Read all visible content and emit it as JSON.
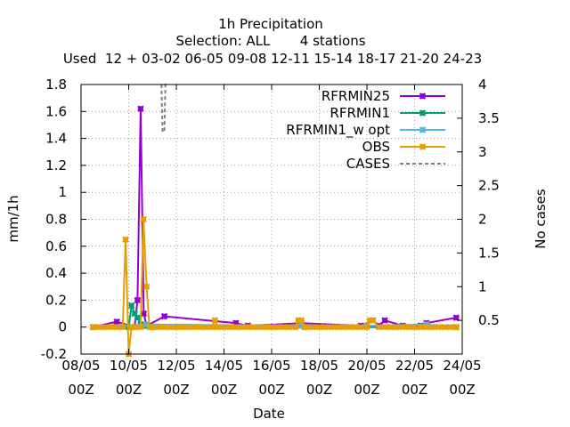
{
  "chart_data": {
    "type": "line",
    "title": "1h Precipitation",
    "subtitle": "Selection: ALL       4 stations",
    "subtitle2": "Used  12 + 03-02 06-05 09-08 12-11 15-14 18-17 21-20 24-23",
    "xlabel": "Date",
    "ylabel": "mm/1h",
    "y2label": "No cases",
    "xlim": [
      8,
      24
    ],
    "ylim": [
      -0.2,
      1.8
    ],
    "y2lim": [
      0,
      4
    ],
    "grid": true,
    "legend_position": "top-right",
    "x_ticks": [
      {
        "v": 8,
        "l1": "08/05",
        "l2": "00Z"
      },
      {
        "v": 10,
        "l1": "10/05",
        "l2": "00Z"
      },
      {
        "v": 12,
        "l1": "12/05",
        "l2": "00Z"
      },
      {
        "v": 14,
        "l1": "14/05",
        "l2": "00Z"
      },
      {
        "v": 16,
        "l1": "16/05",
        "l2": "00Z"
      },
      {
        "v": 18,
        "l1": "18/05",
        "l2": "00Z"
      },
      {
        "v": 20,
        "l1": "20/05",
        "l2": "00Z"
      },
      {
        "v": 22,
        "l1": "22/05",
        "l2": "00Z"
      },
      {
        "v": 24,
        "l1": "24/05",
        "l2": "00Z"
      }
    ],
    "y_ticks": [
      {
        "v": -0.2,
        "l": "-0.2"
      },
      {
        "v": 0,
        "l": "0"
      },
      {
        "v": 0.2,
        "l": "0.2"
      },
      {
        "v": 0.4,
        "l": "0.4"
      },
      {
        "v": 0.6,
        "l": "0.6"
      },
      {
        "v": 0.8,
        "l": "0.8"
      },
      {
        "v": 1,
        "l": "1"
      },
      {
        "v": 1.2,
        "l": "1.2"
      },
      {
        "v": 1.4,
        "l": "1.4"
      },
      {
        "v": 1.6,
        "l": "1.6"
      },
      {
        "v": 1.8,
        "l": "1.8"
      }
    ],
    "y2_ticks": [
      {
        "v": 0.5,
        "l": "0.5"
      },
      {
        "v": 1,
        "l": "1"
      },
      {
        "v": 1.5,
        "l": "1.5"
      },
      {
        "v": 2,
        "l": "2"
      },
      {
        "v": 2.5,
        "l": "2.5"
      },
      {
        "v": 3,
        "l": "3"
      },
      {
        "v": 3.5,
        "l": "3.5"
      },
      {
        "v": 4,
        "l": "4"
      }
    ],
    "series": [
      {
        "name": "RFRMIN25",
        "color": "#9400d3",
        "axis": "y",
        "dashed": false,
        "markers": true,
        "x": [
          8.5,
          9.5,
          10.25,
          10.37,
          10.5,
          10.63,
          10.75,
          11.5,
          14.5,
          15.0,
          17.25,
          19.75,
          20.25,
          20.5,
          20.75,
          21.5,
          22.25,
          22.5,
          23.75
        ],
        "y": [
          0,
          0.04,
          0,
          0.2,
          1.62,
          0.1,
          0.01,
          0.08,
          0.03,
          0.01,
          0.03,
          0.01,
          0.05,
          0.01,
          0.05,
          0.01,
          0.01,
          0.03,
          0.07
        ]
      },
      {
        "name": "RFRMIN1",
        "color": "#009e73",
        "axis": "y",
        "dashed": false,
        "markers": true,
        "x": [
          8.5,
          10.0,
          10.12,
          10.25,
          10.37,
          10.5,
          10.75,
          11.0,
          23.75
        ],
        "y": [
          0,
          0,
          0.16,
          0.1,
          0.07,
          0.02,
          0.01,
          0,
          0
        ]
      },
      {
        "name": "RFRMIN1_w_opt",
        "color": "#56b4e9",
        "axis": "y",
        "dashed": false,
        "markers": true,
        "x": [
          8.5,
          10.75,
          17.25,
          20.0,
          22.5,
          23.75
        ],
        "y": [
          0,
          0.02,
          0.01,
          0.01,
          0.02,
          0
        ]
      },
      {
        "name": "OBS",
        "color": "#e69f00",
        "axis": "y",
        "dashed": false,
        "markers": true,
        "x": [
          8.5,
          8.75,
          9.0,
          9.25,
          9.5,
          9.75,
          9.87,
          10.0,
          10.12,
          10.25,
          10.5,
          10.62,
          10.75,
          10.87,
          11.0,
          11.25,
          11.5,
          11.75,
          12.0,
          12.25,
          12.5,
          12.75,
          13.0,
          13.25,
          13.5,
          13.62,
          13.75,
          14.0,
          14.25,
          14.5,
          14.75,
          15.0,
          15.25,
          15.5,
          15.75,
          16.0,
          16.25,
          16.5,
          16.75,
          17.0,
          17.12,
          17.25,
          17.37,
          17.5,
          17.75,
          18.0,
          18.25,
          18.5,
          18.75,
          19.0,
          19.25,
          19.5,
          19.75,
          20.0,
          20.12,
          20.25,
          20.5,
          20.75,
          21.0,
          21.25,
          21.5,
          21.75,
          22.0,
          22.25,
          22.5,
          22.75,
          23.0,
          23.25,
          23.5,
          23.75
        ],
        "y": [
          0,
          0,
          0,
          0,
          0,
          0,
          0.65,
          -0.2,
          0,
          0,
          0,
          0.8,
          0.3,
          0,
          0,
          0,
          0,
          0,
          0,
          0,
          0,
          0,
          0,
          0,
          0,
          0.05,
          0,
          0,
          0,
          0,
          0,
          0,
          0,
          0,
          0,
          0,
          0,
          0,
          0,
          0,
          0.05,
          0.05,
          0,
          0,
          0,
          0,
          0,
          0,
          0,
          0,
          0,
          0,
          0,
          0,
          0.05,
          0.05,
          0,
          0,
          0,
          0,
          0,
          0,
          0,
          0,
          0,
          0,
          0,
          0,
          0,
          0
        ]
      },
      {
        "name": "CASES",
        "color": "#808080",
        "axis": "y2",
        "dashed": true,
        "markers": false,
        "x": [
          11.375,
          11.42,
          11.47,
          11.5,
          11.54,
          11.625
        ],
        "y": [
          4,
          3.3,
          3.3,
          3.3,
          4,
          4
        ]
      }
    ]
  },
  "legend": [
    {
      "label": "RFRMIN25",
      "color": "#9400d3",
      "dashed": false
    },
    {
      "label": "RFRMIN1",
      "color": "#009e73",
      "dashed": false
    },
    {
      "label": "RFRMIN1_w opt",
      "color": "#56b4e9",
      "dashed": false
    },
    {
      "label": "OBS",
      "color": "#e69f00",
      "dashed": false
    },
    {
      "label": "CASES",
      "color": "#808080",
      "dashed": true
    }
  ]
}
